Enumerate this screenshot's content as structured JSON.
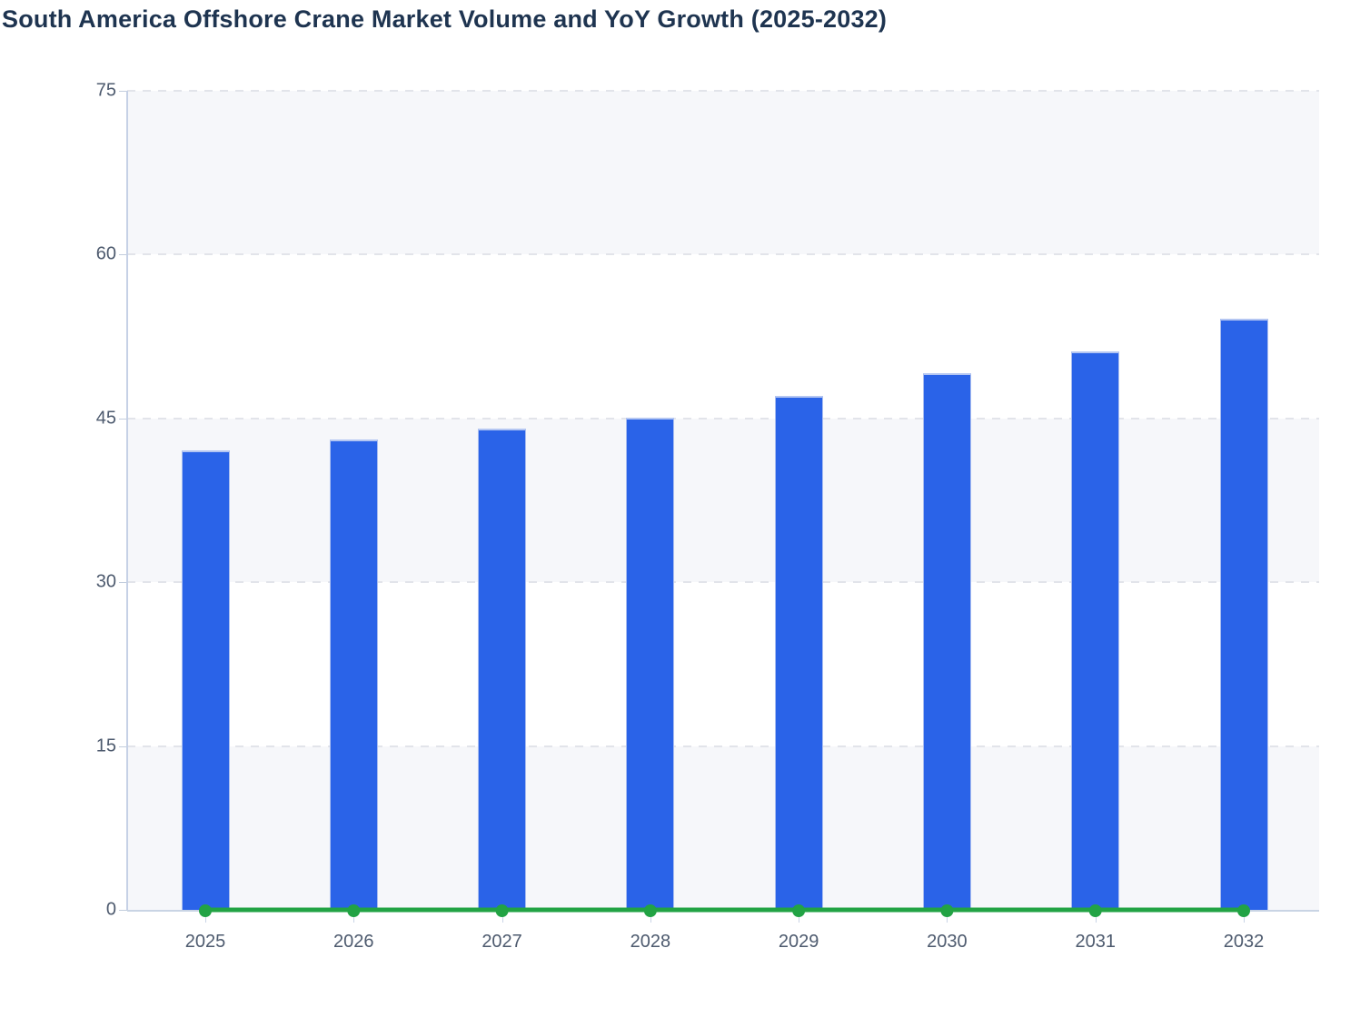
{
  "title": "South America Offshore Crane Market Volume and YoY Growth (2025-2032)",
  "chart_data": {
    "type": "bar",
    "title": "South America Offshore Crane Market Volume and YoY Growth (2025-2032)",
    "categories": [
      "2025",
      "2026",
      "2027",
      "2028",
      "2029",
      "2030",
      "2031",
      "2032"
    ],
    "series": [
      {
        "name": "Market Volume",
        "type": "bar",
        "color": "#2a63e8",
        "values": [
          42.1,
          43.1,
          44.1,
          45.1,
          47.1,
          49.1,
          51.1,
          54.1
        ]
      },
      {
        "name": "YoY Growth",
        "type": "line",
        "color": "#22a344",
        "values": [
          0,
          0,
          0,
          0,
          0,
          0,
          0,
          0
        ]
      }
    ],
    "xlabel": "",
    "ylabel": "",
    "ylim": [
      0,
      75
    ],
    "y_ticks": [
      0,
      15,
      30,
      45,
      60,
      75
    ],
    "grid": "horizontal-dashed",
    "plot_bands": "alternating-light-gray",
    "legend_position": "none"
  },
  "colors": {
    "bar_fill": "#2a63e8",
    "bar_edge": "#a9bdf0",
    "line_green": "#22a344",
    "band_fill": "#f6f7fa",
    "gridline": "#e2e4ea",
    "axis_line": "#c6d1e6",
    "tick_label": "#4d5a6e",
    "title_text": "#1e3450",
    "background": "#ffffff"
  }
}
